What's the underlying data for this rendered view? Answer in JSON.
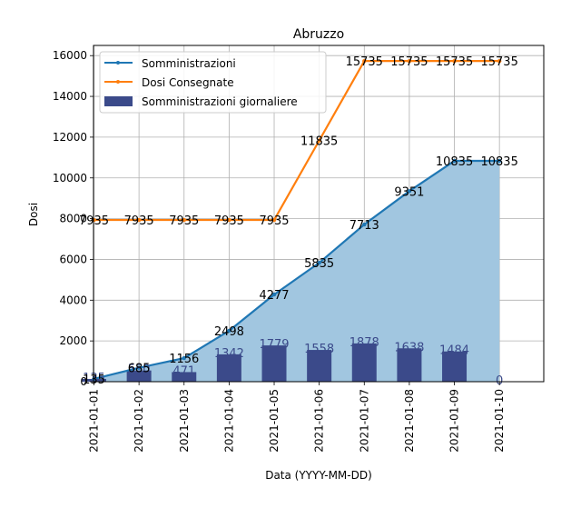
{
  "chart_data": {
    "type": "line",
    "title": "Abruzzo",
    "xlabel": "Data (YYYY-MM-DD)",
    "ylabel": "Dosi",
    "categories": [
      "2021-01-01",
      "2021-01-02",
      "2021-01-03",
      "2021-01-04",
      "2021-01-05",
      "2021-01-06",
      "2021-01-07",
      "2021-01-08",
      "2021-01-09",
      "2021-01-10"
    ],
    "y_ticks": [
      0,
      2000,
      4000,
      6000,
      8000,
      10000,
      12000,
      14000,
      16000
    ],
    "ylim": [
      0,
      16500
    ],
    "grid": true,
    "legend_position": "top-left",
    "series": [
      {
        "name": "Somministrazioni",
        "kind": "line",
        "color": "#1f77b4",
        "fill": "#a1c6e0",
        "values": [
          135,
          685,
          1156,
          2498,
          4277,
          5835,
          7713,
          9351,
          10835,
          10835
        ]
      },
      {
        "name": "Dosi Consegnate",
        "kind": "line",
        "color": "#ff7f0e",
        "values": [
          7935,
          7935,
          7935,
          7935,
          7935,
          11835,
          15735,
          15735,
          15735,
          15735
        ]
      },
      {
        "name": "Somministrazioni giornaliere",
        "kind": "bar",
        "color": "#3b4a8a",
        "values": [
          135,
          550,
          471,
          1342,
          1779,
          1558,
          1878,
          1638,
          1484,
          0
        ]
      }
    ]
  }
}
